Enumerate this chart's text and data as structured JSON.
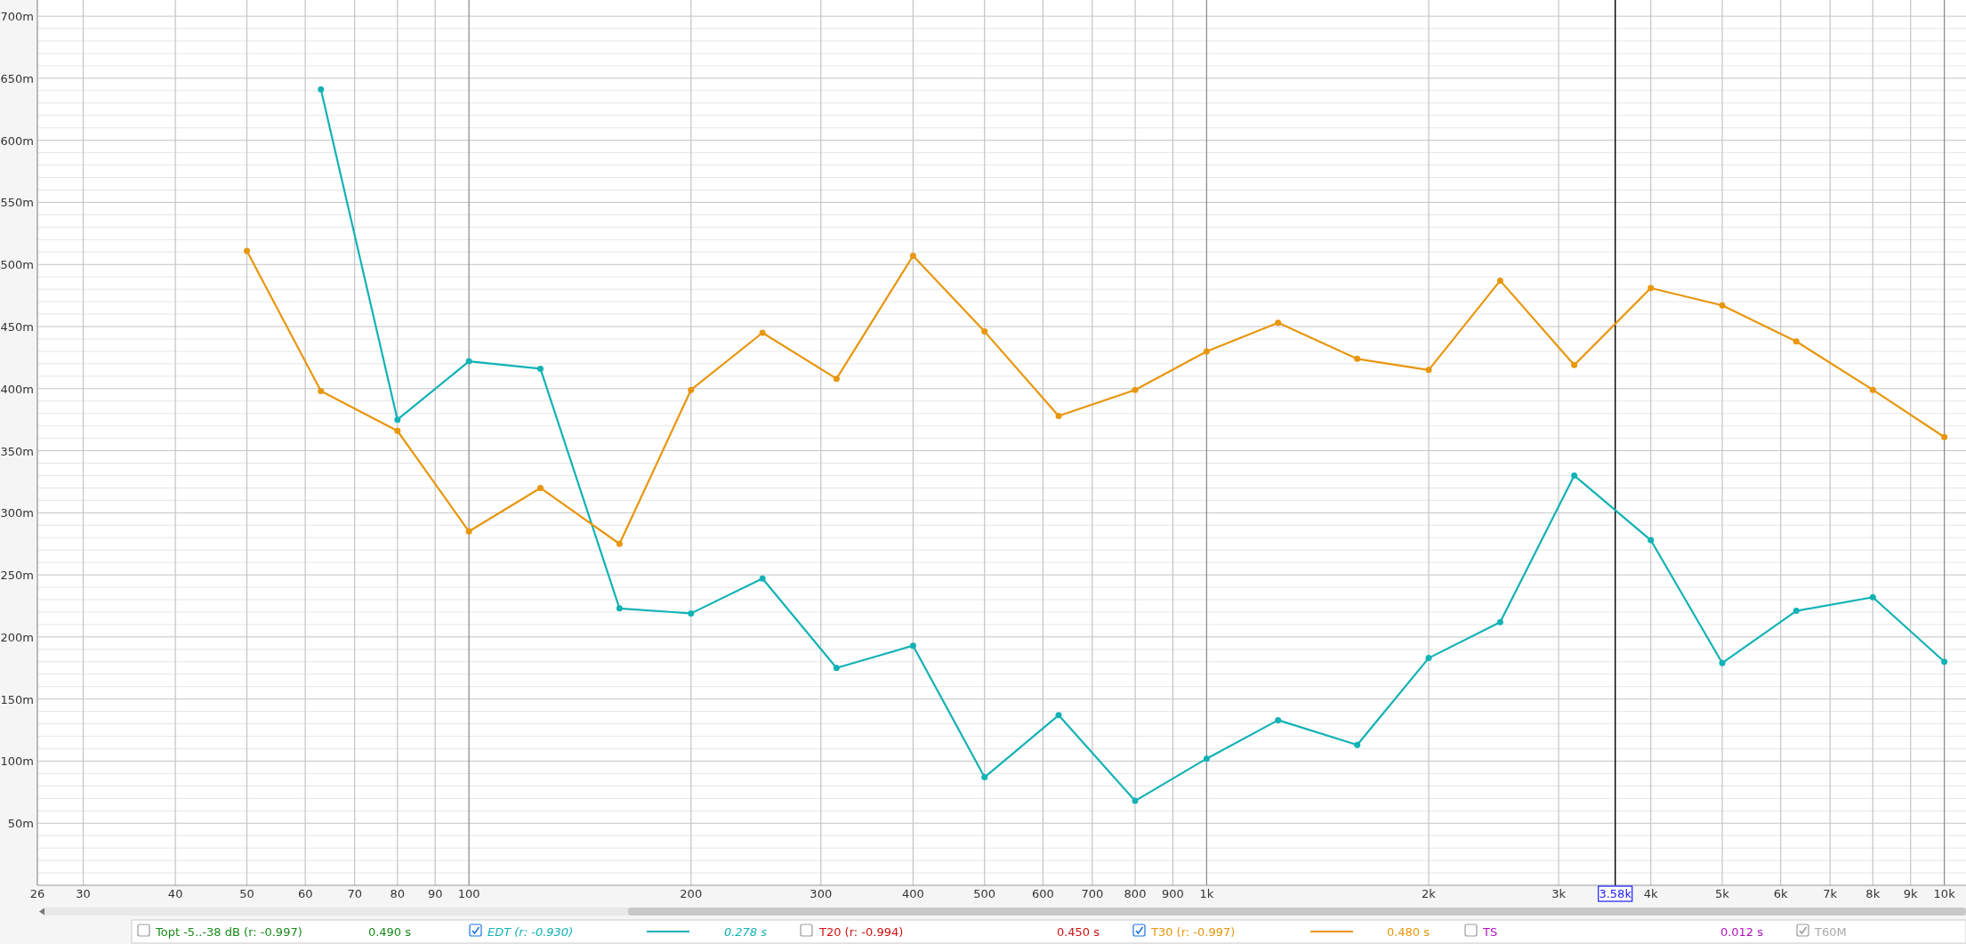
{
  "chart_data": {
    "type": "line",
    "x": [
      50,
      63,
      80,
      100,
      125,
      160,
      200,
      250,
      315,
      400,
      500,
      630,
      800,
      1000,
      1250,
      1600,
      2000,
      2500,
      3150,
      4000,
      5000,
      6300,
      8000,
      10000
    ],
    "series": [
      {
        "name": "EDT (r: -0.930)",
        "color": "#12b2b5",
        "values": [
          null,
          641,
          375,
          422,
          416,
          223,
          219,
          247,
          175,
          193,
          87,
          137,
          68,
          102,
          133,
          113,
          183,
          212,
          330,
          278,
          179,
          221,
          232,
          180
        ]
      },
      {
        "name": "T30 (r: -0.997)",
        "color": "#e8960c",
        "values": [
          511,
          398,
          366,
          285,
          320,
          275,
          399,
          445,
          408,
          507,
          446,
          378,
          399,
          430,
          453,
          424,
          415,
          487,
          419,
          481,
          467,
          438,
          399,
          361
        ]
      }
    ],
    "xlim": [
      26,
      10700
    ],
    "log": "x",
    "xticks": [
      26,
      30,
      40,
      50,
      60,
      70,
      80,
      90,
      100,
      200,
      300,
      400,
      500,
      600,
      700,
      800,
      900,
      {
        "value": 1000,
        "label": "1k"
      },
      {
        "value": 2000,
        "label": "2k"
      },
      {
        "value": 3000,
        "label": "3k"
      },
      {
        "value": 4000,
        "label": "4k"
      },
      {
        "value": 5000,
        "label": "5k"
      },
      {
        "value": 6000,
        "label": "6k"
      },
      {
        "value": 7000,
        "label": "7k"
      },
      {
        "value": 8000,
        "label": "8k"
      },
      {
        "value": 9000,
        "label": "9k"
      },
      {
        "value": 10000,
        "label": "10k"
      }
    ],
    "ylim": [
      0,
      713
    ],
    "yticks": [
      {
        "value": 10,
        "label": null
      },
      {
        "value": 20,
        "label": null
      },
      {
        "value": 30,
        "label": null
      },
      {
        "value": 40,
        "label": null
      },
      {
        "value": 50,
        "label": "50m"
      },
      {
        "value": 60,
        "label": null
      },
      {
        "value": 70,
        "label": null
      },
      {
        "value": 80,
        "label": null
      },
      {
        "value": 90,
        "label": null
      },
      {
        "value": 100,
        "label": "100m"
      },
      {
        "value": 110,
        "label": null
      },
      {
        "value": 120,
        "label": null
      },
      {
        "value": 130,
        "label": null
      },
      {
        "value": 140,
        "label": null
      },
      {
        "value": 150,
        "label": "150m"
      },
      {
        "value": 160,
        "label": null
      },
      {
        "value": 170,
        "label": null
      },
      {
        "value": 180,
        "label": null
      },
      {
        "value": 190,
        "label": null
      },
      {
        "value": 200,
        "label": "200m"
      },
      {
        "value": 210,
        "label": null
      },
      {
        "value": 220,
        "label": null
      },
      {
        "value": 230,
        "label": null
      },
      {
        "value": 240,
        "label": null
      },
      {
        "value": 250,
        "label": "250m"
      },
      {
        "value": 260,
        "label": null
      },
      {
        "value": 270,
        "label": null
      },
      {
        "value": 280,
        "label": null
      },
      {
        "value": 290,
        "label": null
      },
      {
        "value": 300,
        "label": "300m"
      },
      {
        "value": 310,
        "label": null
      },
      {
        "value": 320,
        "label": null
      },
      {
        "value": 330,
        "label": null
      },
      {
        "value": 340,
        "label": null
      },
      {
        "value": 350,
        "label": "350m"
      },
      {
        "value": 360,
        "label": null
      },
      {
        "value": 370,
        "label": null
      },
      {
        "value": 380,
        "label": null
      },
      {
        "value": 390,
        "label": null
      },
      {
        "value": 400,
        "label": "400m"
      },
      {
        "value": 410,
        "label": null
      },
      {
        "value": 420,
        "label": null
      },
      {
        "value": 430,
        "label": null
      },
      {
        "value": 440,
        "label": null
      },
      {
        "value": 450,
        "label": "450m"
      },
      {
        "value": 460,
        "label": null
      },
      {
        "value": 470,
        "label": null
      },
      {
        "value": 480,
        "label": null
      },
      {
        "value": 490,
        "label": null
      },
      {
        "value": 500,
        "label": "500m"
      },
      {
        "value": 510,
        "label": null
      },
      {
        "value": 520,
        "label": null
      },
      {
        "value": 530,
        "label": null
      },
      {
        "value": 540,
        "label": null
      },
      {
        "value": 550,
        "label": "550m"
      },
      {
        "value": 560,
        "label": null
      },
      {
        "value": 570,
        "label": null
      },
      {
        "value": 580,
        "label": null
      },
      {
        "value": 590,
        "label": null
      },
      {
        "value": 600,
        "label": "600m"
      },
      {
        "value": 610,
        "label": null
      },
      {
        "value": 620,
        "label": null
      },
      {
        "value": 630,
        "label": null
      },
      {
        "value": 640,
        "label": null
      },
      {
        "value": 650,
        "label": "650m"
      },
      {
        "value": 660,
        "label": null
      },
      {
        "value": 670,
        "label": null
      },
      {
        "value": 680,
        "label": null
      },
      {
        "value": 690,
        "label": null
      },
      {
        "value": 700,
        "label": "700m"
      }
    ],
    "ref_lines": [
      {
        "axis": "x",
        "value": 3580,
        "label": "3.58k",
        "color": "#000000"
      }
    ],
    "grid": true,
    "marker": "circle",
    "line_style": "solid",
    "legend": "bottom",
    "annotations": [
      "Topt -5..-38 dB (r: -0.997)",
      "0.490 s",
      "0.278 s",
      "T20 (r: -0.994)",
      "0.450 s",
      "0.480 s",
      "TS",
      "0.012 s",
      "T60M"
    ]
  }
}
